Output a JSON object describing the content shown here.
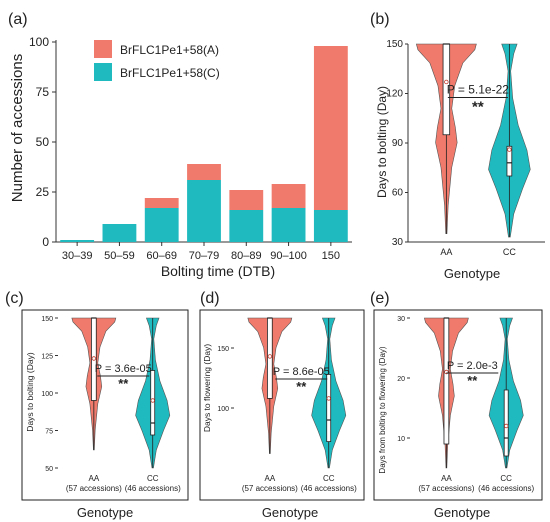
{
  "colors": {
    "A": "#f07a6b",
    "C": "#1fbac0",
    "box": "#ffffff",
    "axis": "#333333"
  },
  "panel_labels": [
    "(a)",
    "(b)",
    "(c)",
    "(d)",
    "(e)"
  ],
  "chart_data": [
    {
      "panel": "(a)",
      "type": "bar",
      "stacked": true,
      "categories": [
        "30–39",
        "50–59",
        "60–69",
        "70–79",
        "80–89",
        "90–100",
        "150"
      ],
      "series": [
        {
          "name": "BrFLC1Pe1+58(A)",
          "values": [
            0,
            0,
            5,
            8,
            10,
            12,
            82
          ]
        },
        {
          "name": "BrFLC1Pe1+58(C)",
          "values": [
            1,
            9,
            17,
            31,
            16,
            17,
            16
          ]
        }
      ],
      "xlabel": "Bolting time (DTB)",
      "ylabel": "Number of accessions",
      "ylim": [
        0,
        100
      ],
      "yticks": [
        0,
        25,
        50,
        75,
        100
      ],
      "ytick_labels": [
        "0",
        "25",
        "50",
        "75",
        "100"
      ],
      "legend": "top-left"
    },
    {
      "panel": "(b)",
      "type": "violin",
      "categories": [
        "AA",
        "CC"
      ],
      "xlabel": "Genotype",
      "ylabel": "Days to bolting (Day)",
      "ylim": [
        30,
        150
      ],
      "yticks": [
        30,
        60,
        90,
        120,
        150
      ],
      "stat": "P = 5.1e-22",
      "sig": "**",
      "groups": [
        {
          "min": 35,
          "q1": 95,
          "median": 150,
          "q3": 150,
          "max": 150,
          "mean": 127
        },
        {
          "min": 33,
          "q1": 70,
          "median": 78,
          "q3": 88,
          "max": 150,
          "mean": 86
        }
      ]
    },
    {
      "panel": "(c)",
      "type": "violin",
      "categories": [
        "AA\n(57 accessions)",
        "CC\n(46 accessions)"
      ],
      "xlabel": "Genotype",
      "ylabel": "Days to bolting (Day)",
      "ylim": [
        50,
        150
      ],
      "yticks": [
        50,
        75,
        100,
        125,
        150
      ],
      "stat": "P = 3.6e-05",
      "sig": "**",
      "groups": [
        {
          "min": 62,
          "q1": 95,
          "median": 150,
          "q3": 150,
          "max": 150,
          "mean": 123
        },
        {
          "min": 50,
          "q1": 72,
          "median": 80,
          "q3": 115,
          "max": 150,
          "mean": 95
        }
      ]
    },
    {
      "panel": "(d)",
      "type": "violin",
      "categories": [
        "AA\n(57 accessions)",
        "CC\n(46 accessions)"
      ],
      "xlabel": "Genotype",
      "ylabel": "Days to flowering (Day)",
      "ylim": [
        50,
        175
      ],
      "yticks": [
        100,
        150
      ],
      "stat": "P = 8.6e-05",
      "sig": "**",
      "groups": [
        {
          "min": 62,
          "q1": 108,
          "median": 175,
          "q3": 175,
          "max": 175,
          "mean": 143
        },
        {
          "min": 50,
          "q1": 72,
          "median": 90,
          "q3": 128,
          "max": 175,
          "mean": 108
        }
      ]
    },
    {
      "panel": "(e)",
      "type": "violin",
      "categories": [
        "AA\n(57 accessions)",
        "CC\n(46 accessions)"
      ],
      "xlabel": "Genotype",
      "ylabel": "Days from bolting to flowering (Day)",
      "ylim": [
        5,
        30
      ],
      "yticks": [
        10,
        20,
        30
      ],
      "stat": "P = 2.0e-3",
      "sig": "**",
      "groups": [
        {
          "min": 5,
          "q1": 9,
          "median": 30,
          "q3": 30,
          "max": 30,
          "mean": 21
        },
        {
          "min": 5,
          "q1": 7,
          "median": 10,
          "q3": 18,
          "max": 30,
          "mean": 12
        }
      ]
    }
  ]
}
